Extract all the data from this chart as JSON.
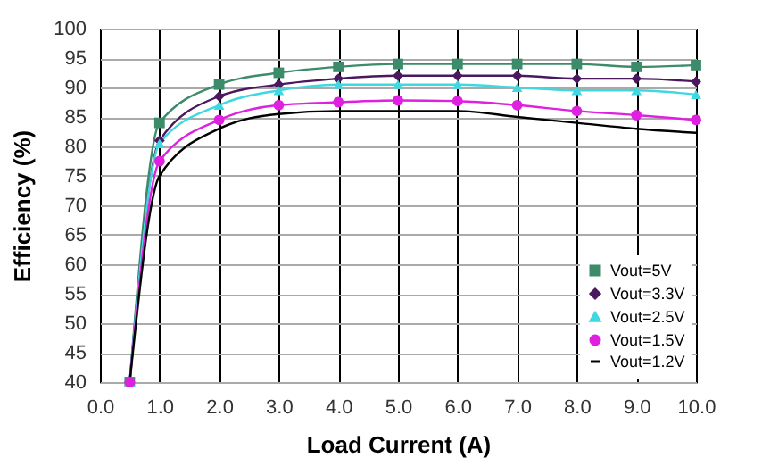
{
  "chart_data": {
    "type": "line",
    "xlabel": "Load Current (A)",
    "ylabel": "Efficiency (%)",
    "x": [
      0.5,
      1,
      2,
      3,
      4,
      5,
      6,
      7,
      8,
      9,
      10
    ],
    "series": [
      {
        "name": "Vout=5V",
        "color": "#3c8c6c",
        "marker": "square",
        "values": [
          40,
          84,
          90.5,
          92.5,
          93.5,
          94,
          94,
          94,
          94,
          93.5,
          93.8
        ]
      },
      {
        "name": "Vout=3.3V",
        "color": "#4b1860",
        "marker": "diamond",
        "values": [
          40,
          81,
          88.5,
          90.5,
          91.5,
          92,
          92,
          92,
          91.5,
          91.5,
          91
        ]
      },
      {
        "name": "Vout=2.5V",
        "color": "#40d8e0",
        "marker": "triangle",
        "values": [
          40,
          80.5,
          87,
          89.5,
          90.5,
          90.5,
          90.5,
          90,
          89.5,
          89.5,
          88.8
        ]
      },
      {
        "name": "Vout=1.5V",
        "color": "#e020e0",
        "marker": "circle",
        "values": [
          40,
          77.5,
          84.5,
          87,
          87.5,
          87.8,
          87.7,
          87,
          86,
          85.3,
          84.5
        ]
      },
      {
        "name": "Vout=1.2V",
        "color": "#000000",
        "marker": "none",
        "values": [
          40,
          75,
          83,
          85.5,
          86,
          86,
          86,
          85,
          84,
          83,
          82.3
        ]
      }
    ],
    "xlim": [
      0,
      10
    ],
    "ylim": [
      40,
      100
    ],
    "xticks": [
      {
        "value": 0,
        "label": "0.0"
      },
      {
        "value": 1,
        "label": "1.0"
      },
      {
        "value": 2,
        "label": "2.0"
      },
      {
        "value": 3,
        "label": "3.0"
      },
      {
        "value": 4,
        "label": "4.0"
      },
      {
        "value": 5,
        "label": "5.0"
      },
      {
        "value": 6,
        "label": "6.0"
      },
      {
        "value": 7,
        "label": "7.0"
      },
      {
        "value": 8,
        "label": "8.0"
      },
      {
        "value": 9,
        "label": "9.0"
      },
      {
        "value": 10,
        "label": "10.0"
      }
    ],
    "yticks": [
      40,
      45,
      50,
      55,
      60,
      65,
      70,
      75,
      80,
      85,
      90,
      95,
      100
    ],
    "grid": true,
    "legend": "bottom right"
  }
}
